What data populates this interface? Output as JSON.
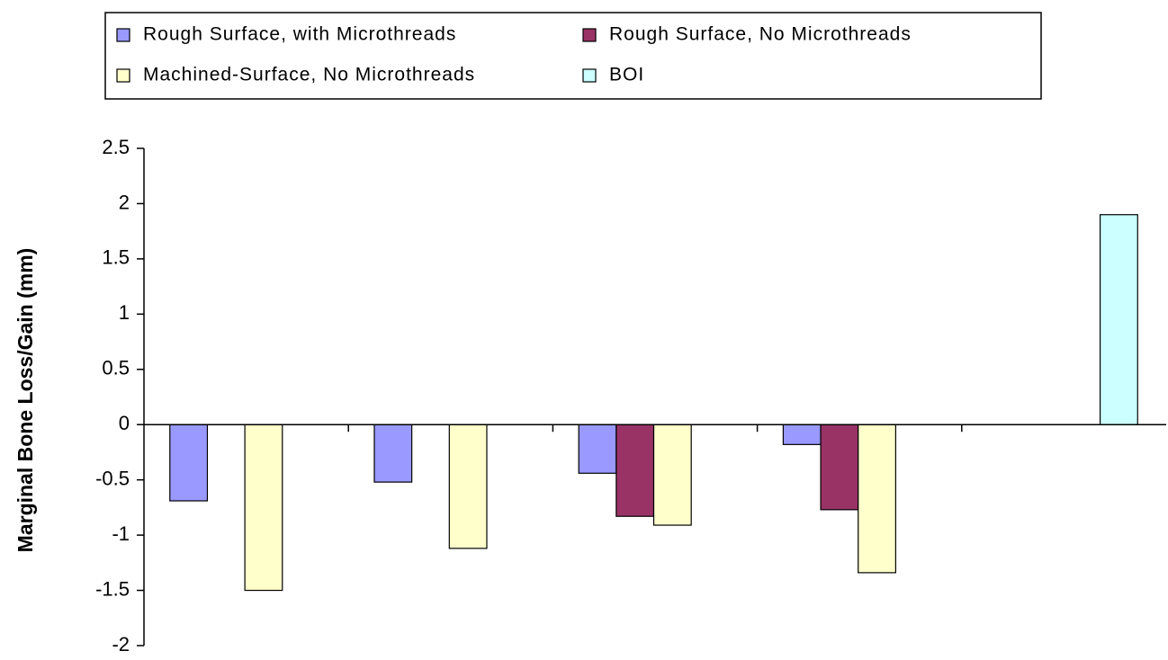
{
  "chart_data": {
    "type": "bar",
    "y_label": "Marginal Bone Loss/Gain (mm)",
    "categories": [
      null,
      null,
      null,
      null,
      null
    ],
    "series": [
      {
        "name": "Rough Surface, with Microthreads",
        "color": "#9999ff",
        "values": [
          -0.69,
          -0.52,
          -0.44,
          -0.18,
          null
        ]
      },
      {
        "name": "Rough Surface, No Microthreads",
        "color": "#993366",
        "values": [
          null,
          null,
          -0.83,
          -0.77,
          null
        ]
      },
      {
        "name": "Machined-Surface, No Microthreads",
        "color": "#ffffcc",
        "values": [
          -1.5,
          -1.12,
          -0.91,
          -1.34,
          null
        ]
      },
      {
        "name": "BOI",
        "color": "#ccffff",
        "values": [
          null,
          null,
          null,
          null,
          1.9
        ]
      }
    ],
    "ylim": [
      -2,
      2.5
    ],
    "yticks": [
      -2,
      -1.5,
      -1,
      -0.5,
      0,
      0.5,
      1,
      1.5,
      2,
      2.5
    ],
    "legend": "top"
  }
}
